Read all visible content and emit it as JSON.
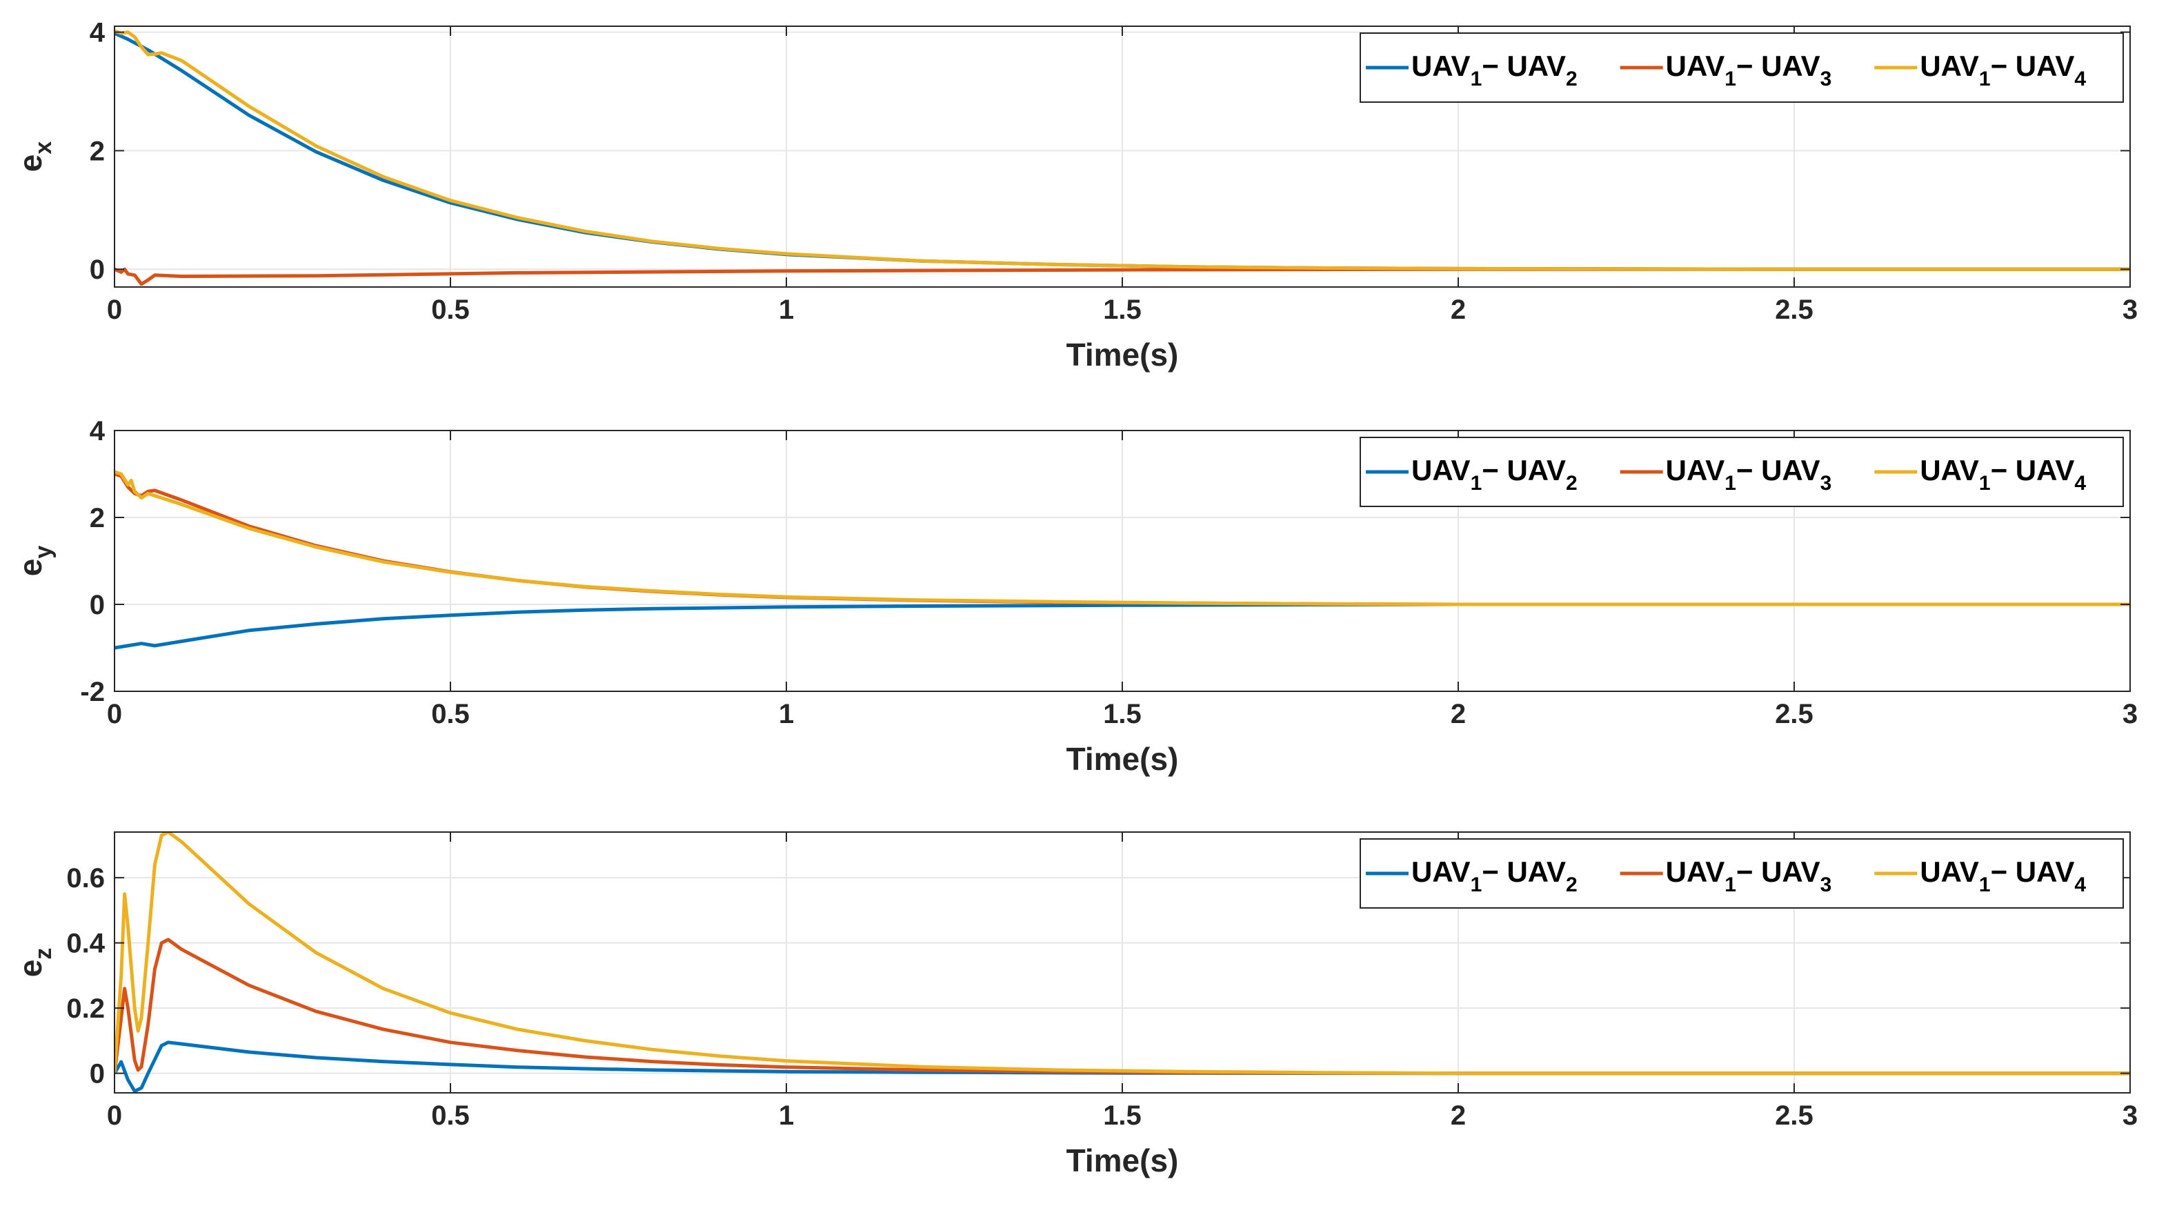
{
  "chart_data": [
    {
      "type": "line",
      "ylabel": "e",
      "ylabel_sub": "x",
      "xlabel": "Time(s)",
      "xlim": [
        0,
        3
      ],
      "ylim": [
        -0.3,
        4.1
      ],
      "xticks": [
        0,
        0.5,
        1,
        1.5,
        2,
        2.5,
        3
      ],
      "xtick_labels": [
        "0",
        "0.5",
        "1",
        "1.5",
        "2",
        "2.5",
        "3"
      ],
      "yticks": [
        0,
        2,
        4
      ],
      "ytick_labels": [
        "0",
        "2",
        "4"
      ],
      "grid": true,
      "legend_position": "top-right",
      "series": [
        {
          "name": "UAV1 - UAV2",
          "label": [
            "UAV",
            "1",
            "− UAV",
            "2"
          ],
          "color": "#0072BD",
          "points": [
            [
              0,
              3.98
            ],
            [
              0.02,
              3.88
            ],
            [
              0.05,
              3.7
            ],
            [
              0.1,
              3.35
            ],
            [
              0.2,
              2.6
            ],
            [
              0.3,
              1.98
            ],
            [
              0.4,
              1.5
            ],
            [
              0.5,
              1.12
            ],
            [
              0.6,
              0.84
            ],
            [
              0.7,
              0.62
            ],
            [
              0.8,
              0.46
            ],
            [
              0.9,
              0.34
            ],
            [
              1.0,
              0.25
            ],
            [
              1.2,
              0.14
            ],
            [
              1.4,
              0.08
            ],
            [
              1.6,
              0.04
            ],
            [
              1.8,
              0.02
            ],
            [
              2.0,
              0.01
            ],
            [
              2.5,
              0.0
            ],
            [
              3.0,
              0.0
            ]
          ]
        },
        {
          "name": "UAV1 - UAV3",
          "label": [
            "UAV",
            "1",
            "− UAV",
            "3"
          ],
          "color": "#D95319",
          "points": [
            [
              0,
              0.0
            ],
            [
              0.01,
              -0.05
            ],
            [
              0.015,
              0.0
            ],
            [
              0.02,
              -0.08
            ],
            [
              0.03,
              -0.1
            ],
            [
              0.04,
              -0.25
            ],
            [
              0.05,
              -0.18
            ],
            [
              0.06,
              -0.1
            ],
            [
              0.1,
              -0.12
            ],
            [
              0.3,
              -0.11
            ],
            [
              0.6,
              -0.06
            ],
            [
              1.0,
              -0.03
            ],
            [
              1.5,
              -0.01
            ],
            [
              2.0,
              0.0
            ],
            [
              3.0,
              0.0
            ]
          ]
        },
        {
          "name": "UAV1 - UAV4",
          "label": [
            "UAV",
            "1",
            "− UAV",
            "4"
          ],
          "color": "#EDB120",
          "points": [
            [
              0,
              4.02
            ],
            [
              0.01,
              3.98
            ],
            [
              0.02,
              4.0
            ],
            [
              0.03,
              3.92
            ],
            [
              0.04,
              3.75
            ],
            [
              0.05,
              3.62
            ],
            [
              0.06,
              3.63
            ],
            [
              0.07,
              3.65
            ],
            [
              0.1,
              3.52
            ],
            [
              0.2,
              2.75
            ],
            [
              0.3,
              2.08
            ],
            [
              0.4,
              1.56
            ],
            [
              0.5,
              1.16
            ],
            [
              0.6,
              0.87
            ],
            [
              0.7,
              0.64
            ],
            [
              0.8,
              0.47
            ],
            [
              0.9,
              0.35
            ],
            [
              1.0,
              0.26
            ],
            [
              1.2,
              0.14
            ],
            [
              1.4,
              0.08
            ],
            [
              1.6,
              0.04
            ],
            [
              1.8,
              0.02
            ],
            [
              2.0,
              0.01
            ],
            [
              2.5,
              0.0
            ],
            [
              3.0,
              0.0
            ]
          ]
        }
      ]
    },
    {
      "type": "line",
      "ylabel": "e",
      "ylabel_sub": "y",
      "xlabel": "Time(s)",
      "xlim": [
        0,
        3
      ],
      "ylim": [
        -2,
        4
      ],
      "xticks": [
        0,
        0.5,
        1,
        1.5,
        2,
        2.5,
        3
      ],
      "xtick_labels": [
        "0",
        "0.5",
        "1",
        "1.5",
        "2",
        "2.5",
        "3"
      ],
      "yticks": [
        -2,
        0,
        2,
        4
      ],
      "ytick_labels": [
        "-2",
        "0",
        "2",
        "4"
      ],
      "grid": true,
      "legend_position": "top-right",
      "series": [
        {
          "name": "UAV1 - UAV2",
          "label": [
            "UAV",
            "1",
            "− UAV",
            "2"
          ],
          "color": "#0072BD",
          "points": [
            [
              0,
              -1.0
            ],
            [
              0.02,
              -0.95
            ],
            [
              0.04,
              -0.9
            ],
            [
              0.06,
              -0.95
            ],
            [
              0.1,
              -0.85
            ],
            [
              0.2,
              -0.6
            ],
            [
              0.3,
              -0.45
            ],
            [
              0.4,
              -0.33
            ],
            [
              0.5,
              -0.25
            ],
            [
              0.6,
              -0.18
            ],
            [
              0.7,
              -0.13
            ],
            [
              0.8,
              -0.1
            ],
            [
              1.0,
              -0.06
            ],
            [
              1.2,
              -0.04
            ],
            [
              1.5,
              -0.02
            ],
            [
              2.0,
              0.0
            ],
            [
              3.0,
              0.0
            ]
          ]
        },
        {
          "name": "UAV1 - UAV3",
          "label": [
            "UAV",
            "1",
            "− UAV",
            "3"
          ],
          "color": "#D95319",
          "points": [
            [
              0,
              3.0
            ],
            [
              0.01,
              2.95
            ],
            [
              0.02,
              2.7
            ],
            [
              0.03,
              2.55
            ],
            [
              0.04,
              2.5
            ],
            [
              0.05,
              2.6
            ],
            [
              0.06,
              2.62
            ],
            [
              0.1,
              2.4
            ],
            [
              0.2,
              1.8
            ],
            [
              0.3,
              1.35
            ],
            [
              0.4,
              1.0
            ],
            [
              0.5,
              0.75
            ],
            [
              0.6,
              0.55
            ],
            [
              0.7,
              0.4
            ],
            [
              0.8,
              0.3
            ],
            [
              0.9,
              0.22
            ],
            [
              1.0,
              0.16
            ],
            [
              1.2,
              0.09
            ],
            [
              1.4,
              0.05
            ],
            [
              1.6,
              0.03
            ],
            [
              1.8,
              0.01
            ],
            [
              2.0,
              0.0
            ],
            [
              3.0,
              0.0
            ]
          ]
        },
        {
          "name": "UAV1 - UAV4",
          "label": [
            "UAV",
            "1",
            "− UAV",
            "4"
          ],
          "color": "#EDB120",
          "points": [
            [
              0,
              3.05
            ],
            [
              0.01,
              3.0
            ],
            [
              0.02,
              2.75
            ],
            [
              0.025,
              2.85
            ],
            [
              0.03,
              2.6
            ],
            [
              0.04,
              2.45
            ],
            [
              0.05,
              2.55
            ],
            [
              0.06,
              2.5
            ],
            [
              0.1,
              2.3
            ],
            [
              0.2,
              1.75
            ],
            [
              0.3,
              1.32
            ],
            [
              0.4,
              0.98
            ],
            [
              0.5,
              0.74
            ],
            [
              0.6,
              0.55
            ],
            [
              0.7,
              0.41
            ],
            [
              0.8,
              0.31
            ],
            [
              0.9,
              0.23
            ],
            [
              1.0,
              0.17
            ],
            [
              1.2,
              0.1
            ],
            [
              1.4,
              0.06
            ],
            [
              1.6,
              0.03
            ],
            [
              1.8,
              0.01
            ],
            [
              2.0,
              0.0
            ],
            [
              3.0,
              0.0
            ]
          ]
        }
      ]
    },
    {
      "type": "line",
      "ylabel": "e",
      "ylabel_sub": "z",
      "xlabel": "Time(s)",
      "xlim": [
        0,
        3
      ],
      "ylim": [
        -0.06,
        0.74
      ],
      "xticks": [
        0,
        0.5,
        1,
        1.5,
        2,
        2.5,
        3
      ],
      "xtick_labels": [
        "0",
        "0.5",
        "1",
        "1.5",
        "2",
        "2.5",
        "3"
      ],
      "yticks": [
        0,
        0.2,
        0.4,
        0.6
      ],
      "ytick_labels": [
        "0",
        "0.2",
        "0.4",
        "0.6"
      ],
      "grid": true,
      "legend_position": "top-right",
      "series": [
        {
          "name": "UAV1 - UAV2",
          "label": [
            "UAV",
            "1",
            "− UAV",
            "2"
          ],
          "color": "#0072BD",
          "points": [
            [
              0,
              0.0
            ],
            [
              0.01,
              0.035
            ],
            [
              0.02,
              -0.02
            ],
            [
              0.03,
              -0.055
            ],
            [
              0.04,
              -0.045
            ],
            [
              0.05,
              0.0
            ],
            [
              0.07,
              0.085
            ],
            [
              0.08,
              0.095
            ],
            [
              0.1,
              0.09
            ],
            [
              0.2,
              0.065
            ],
            [
              0.3,
              0.048
            ],
            [
              0.4,
              0.036
            ],
            [
              0.5,
              0.027
            ],
            [
              0.6,
              0.019
            ],
            [
              0.7,
              0.014
            ],
            [
              0.8,
              0.01
            ],
            [
              1.0,
              0.005
            ],
            [
              1.2,
              0.003
            ],
            [
              1.5,
              0.001
            ],
            [
              2.0,
              0.0
            ],
            [
              3.0,
              0.0
            ]
          ]
        },
        {
          "name": "UAV1 - UAV3",
          "label": [
            "UAV",
            "1",
            "− UAV",
            "3"
          ],
          "color": "#D95319",
          "points": [
            [
              0,
              0.0
            ],
            [
              0.01,
              0.17
            ],
            [
              0.015,
              0.26
            ],
            [
              0.02,
              0.2
            ],
            [
              0.03,
              0.04
            ],
            [
              0.035,
              0.01
            ],
            [
              0.04,
              0.02
            ],
            [
              0.05,
              0.15
            ],
            [
              0.06,
              0.32
            ],
            [
              0.07,
              0.4
            ],
            [
              0.08,
              0.41
            ],
            [
              0.1,
              0.38
            ],
            [
              0.2,
              0.27
            ],
            [
              0.3,
              0.19
            ],
            [
              0.4,
              0.135
            ],
            [
              0.5,
              0.095
            ],
            [
              0.6,
              0.07
            ],
            [
              0.7,
              0.05
            ],
            [
              0.8,
              0.036
            ],
            [
              0.9,
              0.026
            ],
            [
              1.0,
              0.019
            ],
            [
              1.2,
              0.01
            ],
            [
              1.4,
              0.005
            ],
            [
              1.6,
              0.002
            ],
            [
              2.0,
              0.0
            ],
            [
              3.0,
              0.0
            ]
          ]
        },
        {
          "name": "UAV1 - UAV4",
          "label": [
            "UAV",
            "1",
            "− UAV",
            "4"
          ],
          "color": "#EDB120",
          "points": [
            [
              0,
              0.0
            ],
            [
              0.01,
              0.3
            ],
            [
              0.015,
              0.55
            ],
            [
              0.02,
              0.45
            ],
            [
              0.03,
              0.2
            ],
            [
              0.035,
              0.13
            ],
            [
              0.04,
              0.17
            ],
            [
              0.05,
              0.4
            ],
            [
              0.06,
              0.64
            ],
            [
              0.07,
              0.73
            ],
            [
              0.08,
              0.74
            ],
            [
              0.1,
              0.71
            ],
            [
              0.2,
              0.52
            ],
            [
              0.3,
              0.37
            ],
            [
              0.4,
              0.26
            ],
            [
              0.5,
              0.185
            ],
            [
              0.6,
              0.135
            ],
            [
              0.7,
              0.1
            ],
            [
              0.8,
              0.073
            ],
            [
              0.9,
              0.053
            ],
            [
              1.0,
              0.038
            ],
            [
              1.2,
              0.02
            ],
            [
              1.4,
              0.01
            ],
            [
              1.6,
              0.005
            ],
            [
              1.8,
              0.002
            ],
            [
              2.0,
              0.0
            ],
            [
              3.0,
              0.0
            ]
          ]
        }
      ]
    }
  ]
}
